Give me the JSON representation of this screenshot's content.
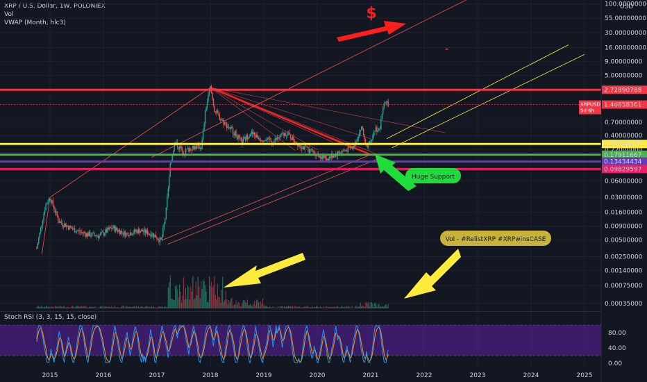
{
  "header": {
    "title": "XRP / U.S. Dollar, 1W, POLONIEX",
    "vol": "Vol",
    "vwap": "VWAP (Month, hlc3)"
  },
  "currency_unit": "USD",
  "symbol_tag": {
    "name": "XRPUSD",
    "countdown": "5d 6h"
  },
  "chart_data": {
    "type": "line",
    "price_axis": {
      "scale": "log",
      "ticks": [
        "100.00000000",
        "55.00000000",
        "30.00000000",
        "16.00000000",
        "9.00000000",
        "5.00000000",
        "0.70000000",
        "0.40000000",
        "0.22000000",
        "0.06000000",
        "0.03000000",
        "0.01600000",
        "0.00900000",
        "0.00500000",
        "0.00250000",
        "0.00140000",
        "0.00075000",
        "0.00035000"
      ]
    },
    "x_ticks": [
      "2015",
      "2016",
      "2017",
      "2018",
      "2019",
      "2020",
      "2021",
      "2022",
      "2023",
      "2024",
      "2025"
    ],
    "horizontal_levels": [
      {
        "value": "2.72890788",
        "color": "#f23645"
      },
      {
        "value": "1.46858361",
        "color": "#f23645"
      },
      {
        "value": "0.28106437",
        "color": "#ffeb3b"
      },
      {
        "value": "0.17911667",
        "color": "#4caf50"
      },
      {
        "value": "0.13434434",
        "color": "#673ab7"
      },
      {
        "value": "0.09829597",
        "color": "#e91e63"
      }
    ],
    "price_series": [
      [
        "2014-10",
        0.0035
      ],
      [
        "2014-12",
        0.022
      ],
      [
        "2015-01",
        0.03
      ],
      [
        "2015-03",
        0.011
      ],
      [
        "2015-06",
        0.008
      ],
      [
        "2015-09",
        0.0065
      ],
      [
        "2015-12",
        0.006
      ],
      [
        "2016-03",
        0.0085
      ],
      [
        "2016-06",
        0.0065
      ],
      [
        "2016-09",
        0.0075
      ],
      [
        "2016-12",
        0.0065
      ],
      [
        "2017-02",
        0.0048
      ],
      [
        "2017-03",
        0.015
      ],
      [
        "2017-04",
        0.12
      ],
      [
        "2017-05",
        0.3
      ],
      [
        "2017-07",
        0.2
      ],
      [
        "2017-09",
        0.25
      ],
      [
        "2017-11",
        0.25
      ],
      [
        "2017-12",
        1.3
      ],
      [
        "2018-01",
        3.0
      ],
      [
        "2018-02",
        1.1
      ],
      [
        "2018-04",
        0.7
      ],
      [
        "2018-06",
        0.5
      ],
      [
        "2018-08",
        0.3
      ],
      [
        "2018-10",
        0.45
      ],
      [
        "2018-12",
        0.36
      ],
      [
        "2019-03",
        0.31
      ],
      [
        "2019-06",
        0.45
      ],
      [
        "2019-09",
        0.27
      ],
      [
        "2019-12",
        0.2
      ],
      [
        "2020-03",
        0.15
      ],
      [
        "2020-06",
        0.2
      ],
      [
        "2020-09",
        0.24
      ],
      [
        "2020-11",
        0.6
      ],
      [
        "2020-12",
        0.22
      ],
      [
        "2021-01",
        0.3
      ],
      [
        "2021-02",
        0.55
      ],
      [
        "2021-03",
        0.5
      ],
      [
        "2021-04",
        1.7
      ],
      [
        "2021-05",
        1.47
      ]
    ],
    "rsi": {
      "label": "Stoch RSI (3, 3, 15, 15, close)",
      "ticks": [
        "80.00",
        "40.00",
        "0.00"
      ],
      "band": [
        20,
        80
      ]
    }
  },
  "annotations": {
    "dollar_sign": "$",
    "huge_support": "Huge Support",
    "volume_note": "Vol - #RelistXRP #XRPwinsCASE"
  },
  "colors": {
    "background": "#131722",
    "up": "#26a69a",
    "down": "#ef5350",
    "rsi_band": "#4a1f82",
    "red_arrow": "#ff1e1e",
    "yellow_arrow": "#ffeb3b",
    "green_arrow": "#1fdc3a"
  }
}
